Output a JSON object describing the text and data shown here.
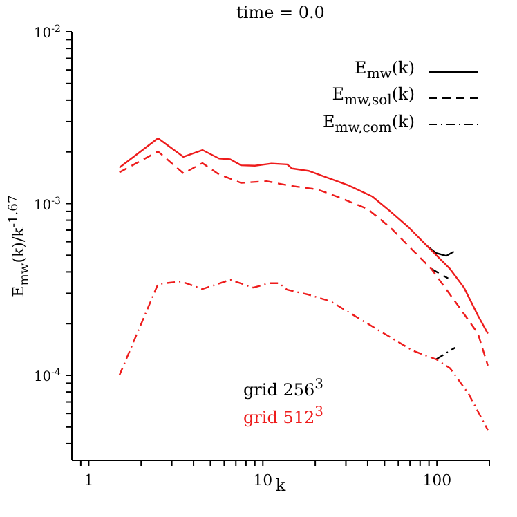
{
  "chart_data": {
    "type": "line",
    "title": "time = 0.0",
    "xlabel": "k",
    "ylabel": "E$_{mw}$(k)/k$^{-1.67}$",
    "log": "xy",
    "grid": false,
    "legend": "top right",
    "marker": "none",
    "xlim": [
      0.8,
      200
    ],
    "ylim": [
      3.2e-05,
      0.01
    ],
    "xticks": [
      {
        "value": 0.9,
        "label": null
      },
      {
        "value": 1,
        "label": "1"
      },
      {
        "value": 2,
        "label": null
      },
      {
        "value": 3,
        "label": null
      },
      {
        "value": 4,
        "label": null
      },
      {
        "value": 5,
        "label": null
      },
      {
        "value": 6,
        "label": null
      },
      {
        "value": 7,
        "label": null
      },
      {
        "value": 8,
        "label": null
      },
      {
        "value": 9,
        "label": null
      },
      {
        "value": 10,
        "label": "10"
      },
      {
        "value": 20,
        "label": null
      },
      {
        "value": 30,
        "label": null
      },
      {
        "value": 40,
        "label": null
      },
      {
        "value": 50,
        "label": null
      },
      {
        "value": 60,
        "label": null
      },
      {
        "value": 70,
        "label": null
      },
      {
        "value": 80,
        "label": null
      },
      {
        "value": 90,
        "label": null
      },
      {
        "value": 100,
        "label": "100"
      },
      {
        "value": 200,
        "label": null
      }
    ],
    "yticks": [
      {
        "value": 4e-05,
        "label": null
      },
      {
        "value": 5e-05,
        "label": null
      },
      {
        "value": 6e-05,
        "label": null
      },
      {
        "value": 7e-05,
        "label": null
      },
      {
        "value": 8e-05,
        "label": null
      },
      {
        "value": 9e-05,
        "label": null
      },
      {
        "value": 0.0001,
        "label": "10$^{-4}$"
      },
      {
        "value": 0.0002,
        "label": null
      },
      {
        "value": 0.0003,
        "label": null
      },
      {
        "value": 0.0004,
        "label": null
      },
      {
        "value": 0.0005,
        "label": null
      },
      {
        "value": 0.0006,
        "label": null
      },
      {
        "value": 0.0007,
        "label": null
      },
      {
        "value": 0.0008,
        "label": null
      },
      {
        "value": 0.0009,
        "label": null
      },
      {
        "value": 0.001,
        "label": "10$^{-3}$"
      },
      {
        "value": 0.002,
        "label": null
      },
      {
        "value": 0.003,
        "label": null
      },
      {
        "value": 0.004,
        "label": null
      },
      {
        "value": 0.005,
        "label": null
      },
      {
        "value": 0.006,
        "label": null
      },
      {
        "value": 0.007,
        "label": null
      },
      {
        "value": 0.008,
        "label": null
      },
      {
        "value": 0.009,
        "label": null
      },
      {
        "value": 0.01,
        "label": "10$^{-2}$"
      }
    ],
    "annotations": [
      "grid 256$^{3}$",
      "grid 512$^{3}$"
    ],
    "series": [
      {
        "name": "E$_{mw}$(k)",
        "color": "#000000",
        "line_style": "solid",
        "x": [
          88,
          99,
          113,
          125
        ],
        "values": [
          0.000565,
          0.000515,
          0.000496,
          0.000525
        ]
      },
      {
        "color": "#ee1c1c",
        "line_style": "solid",
        "x": [
          1.5,
          2.5,
          3.5,
          4.5,
          5.6,
          6.5,
          7.5,
          9,
          11.2,
          13.8,
          14.7,
          18.3,
          24.6,
          31.4,
          42.5,
          54,
          69,
          88,
          119,
          143,
          172,
          196
        ],
        "values": [
          0.00162,
          0.0024,
          0.00187,
          0.00205,
          0.00183,
          0.00181,
          0.00167,
          0.00166,
          0.00171,
          0.00169,
          0.0016,
          0.00155,
          0.00139,
          0.00127,
          0.0011,
          0.0009,
          0.000725,
          0.000565,
          0.000416,
          0.000324,
          0.000223,
          0.000175
        ]
      },
      {
        "name": "E$_{mw,sol}$(k)",
        "color": "#000000",
        "line_style": "dashed",
        "x": [
          93,
          116
        ],
        "values": [
          0.000416,
          0.000367
        ]
      },
      {
        "color": "#ee1c1c",
        "line_style": "dashed",
        "x": [
          1.5,
          2.5,
          3.5,
          4.5,
          5.6,
          7.5,
          10.5,
          14.3,
          20.5,
          27.8,
          40,
          54,
          73,
          93,
          134,
          172,
          196
        ],
        "values": [
          0.00152,
          0.00201,
          0.0015,
          0.00172,
          0.00148,
          0.00132,
          0.00135,
          0.00127,
          0.00121,
          0.00108,
          0.00093,
          0.000725,
          0.000532,
          0.000416,
          0.00025,
          0.000175,
          0.000114
        ]
      },
      {
        "name": "E$_{mw,com}$(k)",
        "color": "#000000",
        "line_style": "dashdot",
        "x": [
          99,
          127
        ],
        "values": [
          0.000124,
          0.000145
        ]
      },
      {
        "color": "#ee1c1c",
        "line_style": "dashdot",
        "x": [
          1.5,
          2.5,
          3.4,
          4.5,
          6.5,
          8.8,
          10.9,
          12.4,
          13.8,
          18.3,
          24.6,
          35,
          45,
          73,
          99,
          119,
          152,
          196
        ],
        "values": [
          0.0001,
          0.00034,
          0.000352,
          0.000318,
          0.00036,
          0.000324,
          0.000344,
          0.000344,
          0.000315,
          0.000295,
          0.000269,
          0.000217,
          0.000186,
          0.000139,
          0.000124,
          0.00011,
          7.8e-05,
          4.8e-05
        ]
      }
    ]
  }
}
